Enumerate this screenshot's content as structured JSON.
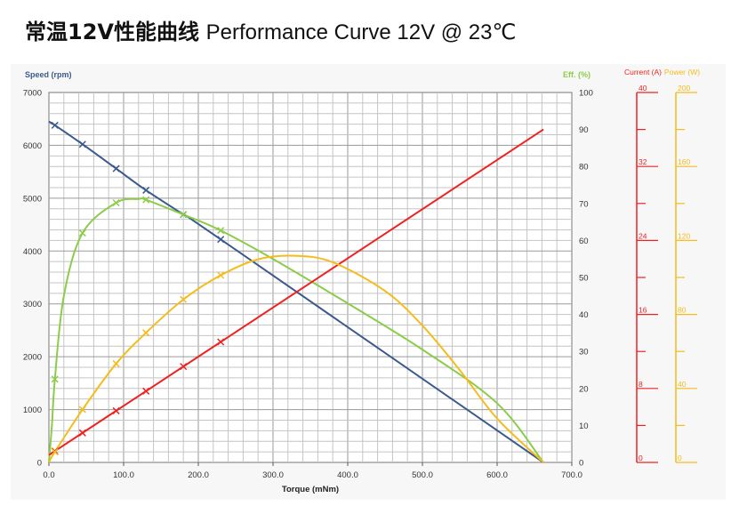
{
  "title": {
    "cn": "常温12V性能曲线",
    "en": "Performance Curve 12V @ 23℃"
  },
  "colors": {
    "speed": "#3a5a8c",
    "efficiency": "#8ccc4a",
    "current": "#ee2222",
    "power": "#f4bc1c",
    "speed_axis_label": "#3a5a8c",
    "eff_axis_label": "#8ccc4a",
    "current_axis": "#ee2222",
    "power_axis": "#f4bc1c"
  },
  "chart_data": {
    "type": "line",
    "xlabel": "Torque (mNm)",
    "xlim": [
      0,
      700
    ],
    "x_ticks": [
      "0.0",
      "100.0",
      "200.0",
      "300.0",
      "400.0",
      "500.0",
      "600.0",
      "700.0"
    ],
    "ylabel_left": "Speed (rpm)",
    "ylim_left": [
      0,
      7000
    ],
    "y_ticks_left": [
      "0",
      "1000",
      "2000",
      "3000",
      "4000",
      "5000",
      "6000",
      "7000"
    ],
    "ylabel_right": "Eff. (%)",
    "ylim_right": [
      0,
      100
    ],
    "y_ticks_right": [
      "0",
      "10",
      "20",
      "30",
      "40",
      "50",
      "60",
      "70",
      "80",
      "90",
      "100"
    ],
    "extra_axes": [
      {
        "label": "Current (A)",
        "range": [
          0,
          40
        ],
        "ticks": [
          "0",
          "8",
          "16",
          "24",
          "32",
          "40"
        ]
      },
      {
        "label": "Power (W)",
        "range": [
          0,
          200
        ],
        "ticks": [
          "0",
          "40",
          "80",
          "120",
          "160",
          "200"
        ]
      }
    ],
    "grid": true,
    "series": [
      {
        "name": "Speed",
        "axis": "left",
        "x": [
          0,
          8,
          45,
          90,
          130,
          180,
          230,
          662
        ],
        "y": [
          6450,
          6380,
          6020,
          5560,
          5150,
          4690,
          4220,
          0
        ],
        "markers_x": [
          8,
          45,
          90,
          130,
          180,
          230
        ]
      },
      {
        "name": "Efficiency",
        "axis": "right",
        "x": [
          0,
          4,
          8,
          20,
          45,
          90,
          120,
          130,
          180,
          230,
          300,
          400,
          500,
          600,
          662
        ],
        "y": [
          0,
          10,
          22.5,
          45,
          62,
          70.2,
          71.2,
          71,
          67,
          62.7,
          55,
          43,
          30.5,
          16,
          0
        ],
        "markers_x": [
          8,
          45,
          90,
          130,
          180,
          230
        ]
      },
      {
        "name": "Current",
        "axis": "current",
        "x": [
          0,
          662
        ],
        "y": [
          0.8,
          36
        ],
        "markers_x": [
          8,
          45,
          90,
          130,
          180,
          230
        ]
      },
      {
        "name": "Power",
        "axis": "power",
        "x": [
          0,
          8,
          45,
          90,
          130,
          180,
          230,
          280,
          330,
          380,
          450,
          500,
          550,
          600,
          662
        ],
        "y": [
          0,
          5.7,
          28.6,
          53.4,
          70.1,
          88.1,
          101.2,
          109.8,
          111.7,
          108.2,
          92.7,
          74,
          49.9,
          23.7,
          0
        ],
        "markers_x": [
          8,
          45,
          90,
          130,
          180,
          230
        ]
      }
    ]
  }
}
